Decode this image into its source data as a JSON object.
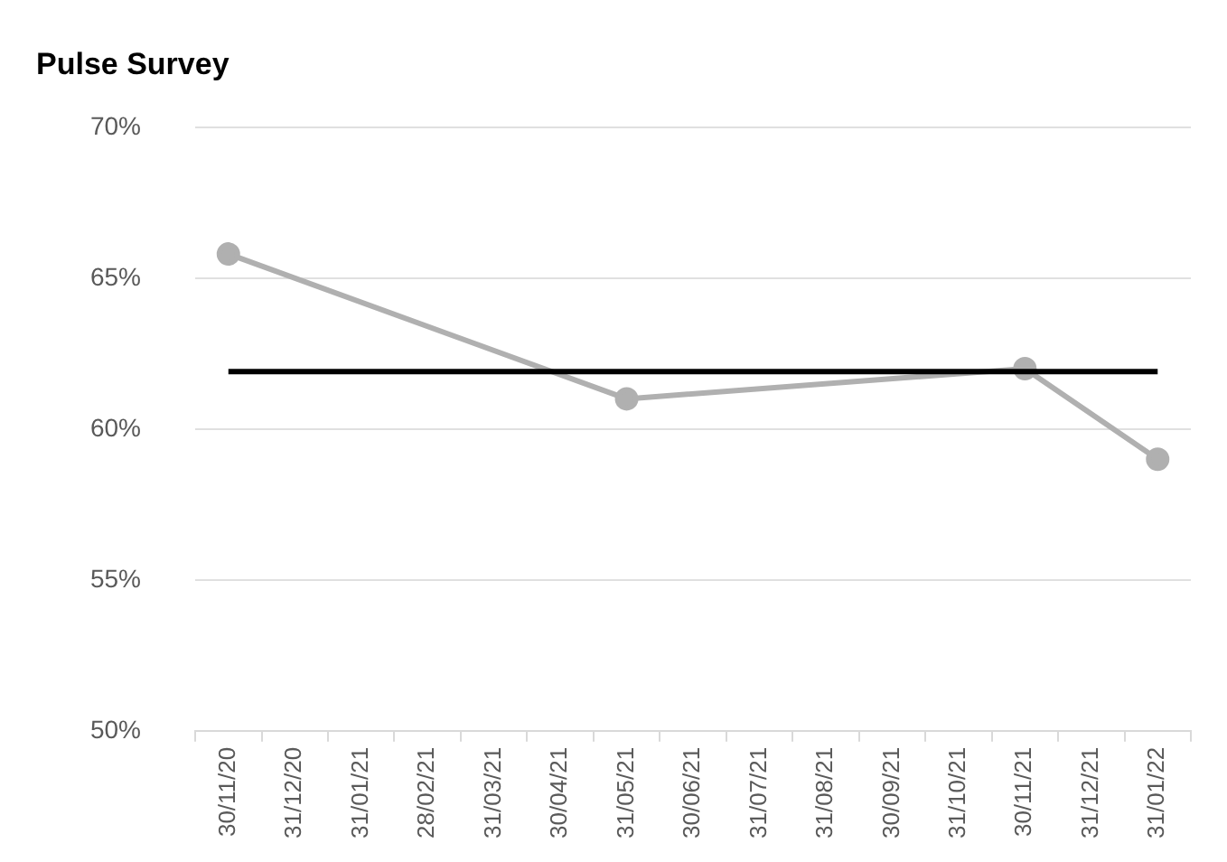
{
  "chart_data": {
    "type": "line",
    "title": "Pulse Survey",
    "categories": [
      "30/11/20",
      "31/12/20",
      "31/01/21",
      "28/02/21",
      "31/03/21",
      "30/04/21",
      "31/05/21",
      "30/06/21",
      "31/07/21",
      "31/08/21",
      "30/09/21",
      "31/10/21",
      "30/11/21",
      "31/12/21",
      "31/01/22"
    ],
    "series": [
      {
        "color": "#b0b0b0",
        "values": [
          65.8,
          null,
          null,
          null,
          null,
          null,
          61.0,
          null,
          null,
          null,
          null,
          null,
          62.0,
          null,
          59.0
        ]
      }
    ],
    "ylim": [
      50,
      70
    ],
    "yticks": [
      {
        "value": 50,
        "label": "50%"
      },
      {
        "value": 55,
        "label": "55%"
      },
      {
        "value": 60,
        "label": "60%"
      },
      {
        "value": 65,
        "label": "65%"
      },
      {
        "value": 70,
        "label": "70%"
      }
    ],
    "ref_lines": [
      {
        "axis": "y",
        "value": 61.9,
        "color": "#000000"
      }
    ],
    "grid": "y",
    "marker": "circle",
    "line_style": "solid"
  }
}
